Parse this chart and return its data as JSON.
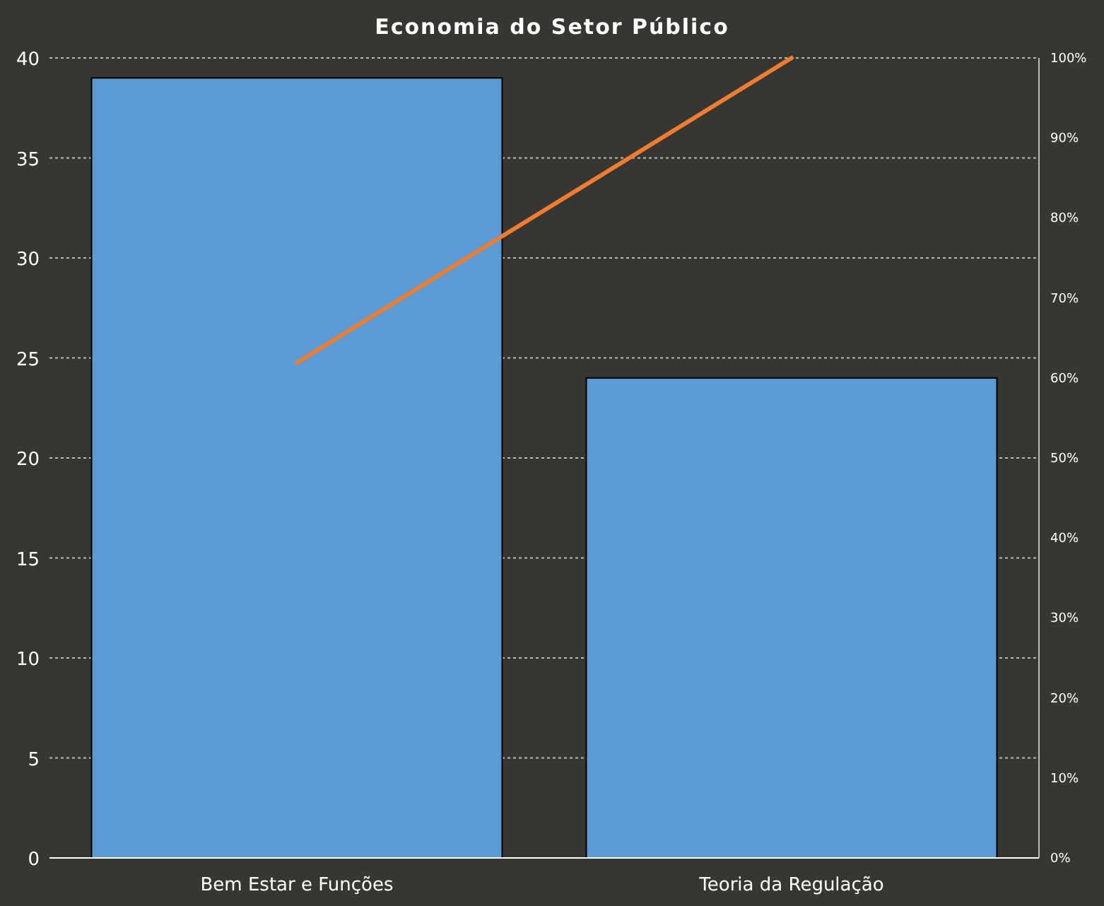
{
  "chart_data": {
    "type": "bar",
    "title": "Economia do Setor Público",
    "categories": [
      "Bem Estar e Funções",
      "Teoria da Regulação"
    ],
    "series": [
      {
        "color": "#5b9bd5",
        "values": [
          39,
          24
        ]
      },
      {
        "type": "line",
        "axis": "y2",
        "color": "#ed7d31",
        "values": [
          61.9,
          100
        ]
      }
    ],
    "ylim": [
      0,
      40
    ],
    "yticks": [
      0,
      5,
      10,
      15,
      20,
      25,
      30,
      35,
      40
    ],
    "y2lim": [
      0,
      100
    ],
    "y2ticks": [
      {
        "value": 0,
        "label": "0%"
      },
      {
        "value": 10,
        "label": "10%"
      },
      {
        "value": 20,
        "label": "20%"
      },
      {
        "value": 30,
        "label": "30%"
      },
      {
        "value": 40,
        "label": "40%"
      },
      {
        "value": 50,
        "label": "50%"
      },
      {
        "value": 60,
        "label": "60%"
      },
      {
        "value": 70,
        "label": "70%"
      },
      {
        "value": 80,
        "label": "80%"
      },
      {
        "value": 90,
        "label": "90%"
      },
      {
        "value": 100,
        "label": "100%"
      }
    ],
    "grid": "y",
    "marker": "none"
  }
}
